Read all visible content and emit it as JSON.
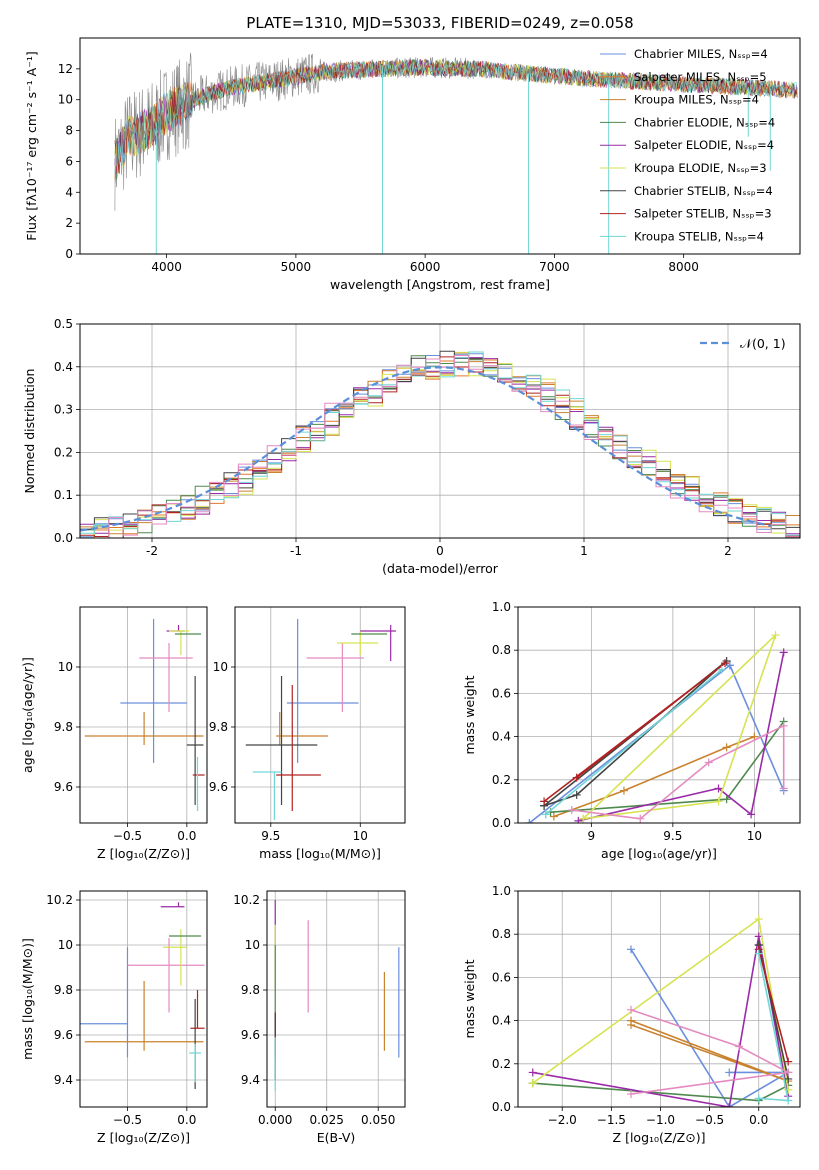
{
  "figure_title": "PLATE=1310, MJD=53033, FIBERID=0249, z=0.058",
  "colors": {
    "cm": "#6a8fdc",
    "sm": "#e07a2c",
    "km": "#c9822d",
    "ce": "#4e8a4e",
    "se": "#9a2aa8",
    "ke": "#d6e352",
    "cs": "#444444",
    "ss": "#b22222",
    "ks": "#70d6d6",
    "pink": "#e48ac0",
    "data": "#888888",
    "gauss": "#5b8fd9"
  },
  "chart_data": [
    {
      "id": "spectrum",
      "type": "line",
      "title": "PLATE=1310, MJD=53033, FIBERID=0249, z=0.058",
      "xlabel": "wavelength [Angstrom, rest frame]",
      "ylabel": "Flux [fλ10⁻¹⁷ erg cm⁻² s⁻¹ A⁻¹]",
      "xlim": [
        3330,
        8900
      ],
      "ylim": [
        0,
        14
      ],
      "xticks": [
        4000,
        5000,
        6000,
        7000,
        8000
      ],
      "yticks": [
        0,
        2,
        4,
        6,
        8,
        10,
        12
      ],
      "legend_position": "top-right",
      "legend": [
        "Chabrier MILES, Nₛₛₚ=4",
        "Salpeter MILES, Nₛₛₚ=5",
        "Kroupa MILES, Nₛₛₚ=4",
        "Chabrier ELODIE, Nₛₛₚ=4",
        "Salpeter ELODIE, Nₛₛₚ=4",
        "Kroupa ELODIE, Nₛₛₚ=3",
        "Chabrier STELIB, Nₛₛₚ=4",
        "Salpeter STELIB, Nₛₛₚ=3",
        "Kroupa STELIB, Nₛₛₚ=4"
      ],
      "continuum": [
        [
          3600,
          6.0
        ],
        [
          3700,
          7.5
        ],
        [
          3900,
          8.3
        ],
        [
          4000,
          9.2
        ],
        [
          4100,
          9.6
        ],
        [
          4300,
          10.3
        ],
        [
          4500,
          10.8
        ],
        [
          4800,
          11.2
        ],
        [
          5200,
          11.8
        ],
        [
          5600,
          12.0
        ],
        [
          6000,
          12.1
        ],
        [
          6400,
          12.0
        ],
        [
          6800,
          11.7
        ],
        [
          7200,
          11.4
        ],
        [
          7600,
          11.2
        ],
        [
          8000,
          11.0
        ],
        [
          8500,
          10.8
        ],
        [
          8880,
          10.6
        ]
      ],
      "model_x_range": [
        3600,
        8880
      ],
      "data_x_range": [
        3600,
        6400
      ],
      "spikes": [
        [
          3920,
          0
        ],
        [
          5670,
          0
        ],
        [
          6800,
          0
        ],
        [
          7420,
          0
        ],
        [
          8500,
          7.6
        ],
        [
          8670,
          5.4
        ]
      ]
    },
    {
      "id": "residuals",
      "type": "histogram",
      "xlabel": "(data-model)/error",
      "ylabel": "Normed distribution",
      "xlim": [
        -2.5,
        2.5
      ],
      "ylim": [
        0,
        0.5
      ],
      "xticks": [
        -2,
        -1,
        0,
        1,
        2
      ],
      "yticks": [
        0.0,
        0.1,
        0.2,
        0.3,
        0.4,
        0.5
      ],
      "legend": [
        "𝒩(0, 1)"
      ],
      "legend_position": "top-right",
      "bin_width": 0.1,
      "bin_start": -2.6,
      "reference_curve": "normal(0,1)"
    },
    {
      "id": "age-vs-Z",
      "type": "errorbar",
      "xlabel": "Z [log₁₀(Z/Z⊙)]",
      "ylabel": "age  [log₁₀(age/yr)]",
      "xlim": [
        -0.9,
        0.17
      ],
      "ylim": [
        9.48,
        10.2
      ],
      "xticks": [
        -0.5,
        0.0
      ],
      "xticklabels": [
        "−0.5",
        "0.0"
      ],
      "yticks": [
        9.6,
        9.8,
        10.0
      ],
      "points": [
        {
          "c": "cm",
          "x": -0.28,
          "xe": [
            -0.28,
            -0.28
          ],
          "y": 9.88,
          "ye": [
            0.2,
            0.28
          ]
        },
        {
          "c": "km",
          "x": -0.36,
          "xe": [
            -0.5,
            0.5
          ],
          "y": 9.77,
          "ye": [
            0.03,
            0.08
          ]
        },
        {
          "c": "pink",
          "x": -0.15,
          "xe": [
            -0.25,
            0.2
          ],
          "y": 10.03,
          "ye": [
            0.18,
            0.05
          ]
        },
        {
          "c": "se",
          "x": -0.07,
          "xe": [
            0.1,
            0.05
          ],
          "y": 10.12,
          "ye": [
            0.0,
            0.02
          ]
        },
        {
          "c": "ke",
          "x": -0.05,
          "xe": [
            0.1,
            0.07
          ],
          "y": 10.12,
          "ye": [
            0.08,
            0.0
          ]
        },
        {
          "c": "ce",
          "x": 0.0,
          "xe": [
            0.1,
            0.12
          ],
          "y": 10.11,
          "ye": [
            0.0,
            0.0
          ]
        },
        {
          "c": "cs",
          "x": 0.07,
          "xe": [
            0.07,
            0.07
          ],
          "y": 9.74,
          "ye": [
            0.2,
            0.23
          ]
        },
        {
          "c": "ss",
          "x": 0.09,
          "xe": [
            0.04,
            0.06
          ],
          "y": 9.64,
          "ye": [
            0.0,
            0.0
          ]
        },
        {
          "c": "ks",
          "x": 0.09,
          "xe": [
            0.0,
            0.0
          ],
          "y": 9.6,
          "ye": [
            0.08,
            0.1
          ]
        }
      ]
    },
    {
      "id": "age-vs-mass",
      "type": "errorbar",
      "xlabel": "mass [log₁₀(M/M⊙)]",
      "xlim": [
        9.3,
        10.25
      ],
      "ylim": [
        9.48,
        10.2
      ],
      "xticks": [
        9.5,
        10.0
      ],
      "yticks": [
        9.6,
        9.8,
        10.0
      ],
      "points": [
        {
          "c": "cm",
          "x": 9.65,
          "xe": [
            0.06,
            0.34
          ],
          "y": 9.88,
          "ye": [
            0.2,
            0.28
          ]
        },
        {
          "c": "km",
          "x": 9.55,
          "xe": [
            0.02,
            0.27
          ],
          "y": 9.77,
          "ye": [
            0.03,
            0.08
          ]
        },
        {
          "c": "cs",
          "x": 9.56,
          "xe": [
            0.2,
            0.2
          ],
          "y": 9.74,
          "ye": [
            0.2,
            0.23
          ]
        },
        {
          "c": "pink",
          "x": 9.9,
          "xe": [
            0.2,
            0.12
          ],
          "y": 10.03,
          "ye": [
            0.18,
            0.05
          ]
        },
        {
          "c": "ke",
          "x": 10.0,
          "xe": [
            0.13,
            0.1
          ],
          "y": 10.08,
          "ye": [
            0.04,
            0.04
          ]
        },
        {
          "c": "ce",
          "x": 10.05,
          "xe": [
            0.1,
            0.1
          ],
          "y": 10.11,
          "ye": [
            0.0,
            0.0
          ]
        },
        {
          "c": "se",
          "x": 10.17,
          "xe": [
            0.17,
            0.03
          ],
          "y": 10.12,
          "ye": [
            0.1,
            0.02
          ]
        },
        {
          "c": "ss",
          "x": 9.62,
          "xe": [
            0.09,
            0.16
          ],
          "y": 9.64,
          "ye": [
            0.12,
            0.3
          ]
        },
        {
          "c": "ks",
          "x": 9.52,
          "xe": [
            0.12,
            0.04
          ],
          "y": 9.65,
          "ye": [
            0.16,
            0.0
          ]
        }
      ]
    },
    {
      "id": "mass-weight-vs-age",
      "type": "line",
      "xlabel": "age  [log₁₀(age/yr)]",
      "ylabel": "mass weight",
      "xlim": [
        8.55,
        10.28
      ],
      "ylim": [
        0.0,
        1.0
      ],
      "xticks": [
        9.0,
        9.5,
        10.0
      ],
      "yticks": [
        0.0,
        0.2,
        0.4,
        0.6,
        0.8,
        1.0
      ],
      "series": [
        {
          "c": "cm",
          "x": [
            8.62,
            9.85,
            10.18,
            9.85,
            8.62
          ],
          "y": [
            0.0,
            0.73,
            0.15,
            0.73,
            0.0
          ]
        },
        {
          "c": "km",
          "x": [
            8.77,
            9.2,
            9.83,
            10.0
          ],
          "y": [
            0.03,
            0.15,
            0.35,
            0.4
          ]
        },
        {
          "c": "ce",
          "x": [
            8.75,
            9.83,
            10.18
          ],
          "y": [
            0.05,
            0.11,
            0.47
          ]
        },
        {
          "c": "se",
          "x": [
            8.92,
            9.78,
            9.98,
            10.18
          ],
          "y": [
            0.01,
            0.16,
            0.04,
            0.79
          ]
        },
        {
          "c": "ke",
          "x": [
            8.95,
            9.78,
            10.13,
            8.95
          ],
          "y": [
            0.02,
            0.1,
            0.87,
            0.02
          ]
        },
        {
          "c": "cs",
          "x": [
            8.71,
            9.83,
            8.91,
            8.71
          ],
          "y": [
            0.08,
            0.75,
            0.13,
            0.08
          ]
        },
        {
          "c": "ss",
          "x": [
            8.71,
            9.82,
            8.91
          ],
          "y": [
            0.1,
            0.74,
            0.21
          ]
        },
        {
          "c": "ks",
          "x": [
            8.72,
            9.8,
            8.72
          ],
          "y": [
            0.04,
            0.71,
            0.04
          ]
        },
        {
          "c": "pink",
          "x": [
            8.88,
            9.3,
            9.72,
            10.18,
            10.18
          ],
          "y": [
            0.06,
            0.02,
            0.28,
            0.45,
            0.16
          ]
        }
      ]
    },
    {
      "id": "mass-vs-Z",
      "type": "errorbar",
      "xlabel": "Z [log₁₀(Z/Z⊙)]",
      "ylabel": "mass [log₁₀(M/M⊙)]",
      "xlim": [
        -0.9,
        0.17
      ],
      "ylim": [
        9.28,
        10.24
      ],
      "xticks": [
        -0.5,
        0.0
      ],
      "xticklabels": [
        "−0.5",
        "0.0"
      ],
      "yticks": [
        9.4,
        9.6,
        9.8,
        10.0,
        10.2
      ],
      "points": [
        {
          "c": "cm",
          "x": -0.5,
          "xe": [
            0.4,
            0.0
          ],
          "y": 9.65,
          "ye": [
            0.15,
            0.34
          ]
        },
        {
          "c": "km",
          "x": -0.36,
          "xe": [
            -0.5,
            0.5
          ],
          "y": 9.57,
          "ye": [
            0.04,
            0.27
          ]
        },
        {
          "c": "pink",
          "x": -0.15,
          "xe": [
            0.35,
            0.3
          ],
          "y": 9.91,
          "ye": [
            0.21,
            0.12
          ]
        },
        {
          "c": "se",
          "x": -0.07,
          "xe": [
            0.15,
            0.05
          ],
          "y": 10.17,
          "ye": [
            0.0,
            0.02
          ]
        },
        {
          "c": "ke",
          "x": -0.05,
          "xe": [
            0.15,
            0.05
          ],
          "y": 9.99,
          "ye": [
            0.17,
            0.08
          ]
        },
        {
          "c": "ce",
          "x": 0.0,
          "xe": [
            0.15,
            0.12
          ],
          "y": 10.04,
          "ye": [
            0.0,
            0.0
          ]
        },
        {
          "c": "ss",
          "x": 0.09,
          "xe": [
            0.06,
            0.06
          ],
          "y": 9.63,
          "ye": [
            0.0,
            0.17
          ]
        },
        {
          "c": "cs",
          "x": 0.07,
          "xe": [
            0.0,
            0.0
          ],
          "y": 9.56,
          "ye": [
            0.2,
            0.2
          ]
        },
        {
          "c": "ks",
          "x": 0.07,
          "xe": [
            0.05,
            0.05
          ],
          "y": 9.52,
          "ye": [
            0.13,
            0.04
          ]
        }
      ]
    },
    {
      "id": "mass-vs-EBV",
      "type": "errorbar",
      "xlabel": "E(B-V)",
      "xlim": [
        -0.004,
        0.063
      ],
      "ylim": [
        9.28,
        10.24
      ],
      "xticks": [
        0.0,
        0.025,
        0.05
      ],
      "xticklabels": [
        "0.000",
        "0.025",
        "0.050"
      ],
      "yticks": [
        9.4,
        9.6,
        9.8,
        10.0,
        10.2
      ],
      "points": [
        {
          "c": "cm",
          "x": 0.06,
          "xe": [
            0,
            0
          ],
          "y": 9.75,
          "ye": [
            0.25,
            0.24
          ]
        },
        {
          "c": "km",
          "x": 0.053,
          "xe": [
            0,
            0
          ],
          "y": 9.71,
          "ye": [
            0.18,
            0.17
          ]
        },
        {
          "c": "pink",
          "x": 0.016,
          "xe": [
            0,
            0
          ],
          "y": 9.9,
          "ye": [
            0.2,
            0.21
          ]
        },
        {
          "c": "se",
          "x": 0.0,
          "xe": [
            0,
            0
          ],
          "y": 10.1,
          "ye": [
            0.1,
            0.1
          ]
        },
        {
          "c": "ke",
          "x": 0.0,
          "xe": [
            0,
            0
          ],
          "y": 9.95,
          "ye": [
            0.15,
            0.14
          ]
        },
        {
          "c": "ce",
          "x": 0.0,
          "xe": [
            0,
            0
          ],
          "y": 9.8,
          "ye": [
            0.2,
            0.2
          ]
        },
        {
          "c": "ss",
          "x": 0.0,
          "xe": [
            0,
            0
          ],
          "y": 9.6,
          "ye": [
            0.1,
            0.1
          ]
        },
        {
          "c": "cs",
          "x": 0.0,
          "xe": [
            0,
            0
          ],
          "y": 9.55,
          "ye": [
            0.15,
            0.15
          ]
        },
        {
          "c": "ks",
          "x": 0.0,
          "xe": [
            0,
            0
          ],
          "y": 9.47,
          "ye": [
            0.12,
            0.12
          ]
        }
      ]
    },
    {
      "id": "mass-weight-vs-Z",
      "type": "line",
      "xlabel": "Z [log₁₀(Z/Z⊙)]",
      "ylabel": "mass weight",
      "xlim": [
        -2.45,
        0.42
      ],
      "ylim": [
        0.0,
        1.0
      ],
      "xticks": [
        -2.0,
        -1.5,
        -1.0,
        -0.5,
        0.0
      ],
      "xticklabels": [
        "−2.0",
        "−1.5",
        "−1.0",
        "−0.5",
        "0.0"
      ],
      "yticks": [
        0.0,
        0.2,
        0.4,
        0.6,
        0.8,
        1.0
      ],
      "series": [
        {
          "c": "cm",
          "x": [
            -1.3,
            -0.3,
            0.3,
            -0.3
          ],
          "y": [
            0.73,
            0.0,
            0.16,
            0.16
          ]
        },
        {
          "c": "km",
          "x": [
            -1.3,
            0.3,
            -1.3
          ],
          "y": [
            0.4,
            0.12,
            0.38
          ]
        },
        {
          "c": "ce",
          "x": [
            -2.3,
            0.0,
            0.3
          ],
          "y": [
            0.11,
            0.03,
            0.1
          ]
        },
        {
          "c": "se",
          "x": [
            -2.3,
            -0.3,
            0.0,
            0.3
          ],
          "y": [
            0.16,
            0.0,
            0.79,
            0.05
          ]
        },
        {
          "c": "ke",
          "x": [
            -2.3,
            0.0,
            0.3
          ],
          "y": [
            0.11,
            0.87,
            0.08
          ]
        },
        {
          "c": "cs",
          "x": [
            0.0,
            0.3,
            0.0
          ],
          "y": [
            0.75,
            0.13,
            0.75
          ]
        },
        {
          "c": "ss",
          "x": [
            0.0,
            0.3
          ],
          "y": [
            0.73,
            0.21
          ]
        },
        {
          "c": "ks",
          "x": [
            0.0,
            0.3,
            0.0
          ],
          "y": [
            0.71,
            0.03,
            0.04
          ]
        },
        {
          "c": "pink",
          "x": [
            -1.3,
            -0.2,
            0.3,
            -1.3
          ],
          "y": [
            0.45,
            0.28,
            0.16,
            0.06
          ]
        }
      ]
    }
  ]
}
